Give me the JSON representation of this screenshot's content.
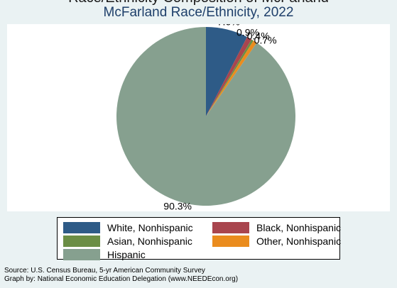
{
  "chart_data": {
    "type": "pie",
    "title": "McFarland Race/Ethnicity, 2022",
    "categories": [
      "White, Nonhispanic",
      "Black, Nonhispanic",
      "Asian, Nonhispanic",
      "Other, Nonhispanic",
      "Hispanic"
    ],
    "values": [
      7.6,
      0.9,
      0.4,
      0.7,
      90.3
    ],
    "data_labels": [
      "7.6%",
      "0.9%",
      "0.4%",
      "0.7%",
      "90.3%"
    ],
    "colors": [
      "#2e5b87",
      "#a9454e",
      "#6b8e45",
      "#ea8c1e",
      "#86a08f"
    ],
    "start_angle_deg": 90,
    "direction": "clockwise",
    "legend_position": "bottom"
  },
  "cutoff_text": "Race/Ethnicity Composition of McFarland",
  "notes": {
    "source": "Source:  U.S. Census Bureau, 5-yr American Community Survey",
    "graph_by": "Graph by: National Economic Education Delegation (www.NEEDEcon.org)"
  }
}
